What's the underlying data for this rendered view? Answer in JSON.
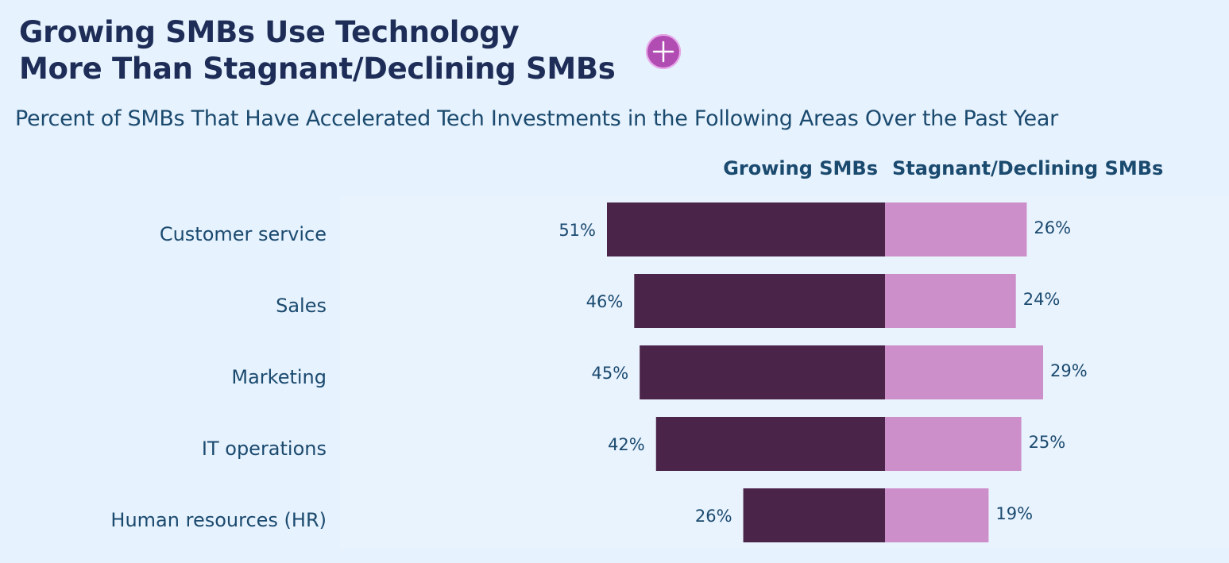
{
  "header": {
    "title_line1": "Growing SMBs Use Technology",
    "title_line2": "More Than Stagnant/Declining SMBs",
    "subtitle": "Percent of SMBs That Have Accelerated Tech Investments in the Following Areas Over the Past Year"
  },
  "icons": {
    "expand": "plus-circle-icon"
  },
  "colors": {
    "growing": "#4b244a",
    "stagnant": "#cc8fc9",
    "accent": "#b14cb3",
    "text": "#1b4a6f",
    "background": "#e6f2fd"
  },
  "chart_data": {
    "type": "bar",
    "orientation": "horizontal-diverging",
    "title": "Growing SMBs Use Technology More Than Stagnant/Declining SMBs",
    "subtitle": "Percent of SMBs That Have Accelerated Tech Investments in the Following Areas Over the Past Year",
    "categories": [
      "Customer service",
      "Sales",
      "Marketing",
      "IT operations",
      "Human resources (HR)"
    ],
    "series": [
      {
        "name": "Growing SMBs",
        "values": [
          51,
          46,
          45,
          42,
          26
        ],
        "labels": [
          "51%",
          "46%",
          "45%",
          "42%",
          "26%"
        ]
      },
      {
        "name": "Stagnant/Declining SMBs",
        "values": [
          26,
          24,
          29,
          25,
          19
        ],
        "labels": [
          "26%",
          "24%",
          "29%",
          "25%",
          "19%"
        ]
      }
    ],
    "unit": "%",
    "xlim": [
      0,
      60
    ],
    "grid": false,
    "legend": "top-center"
  }
}
